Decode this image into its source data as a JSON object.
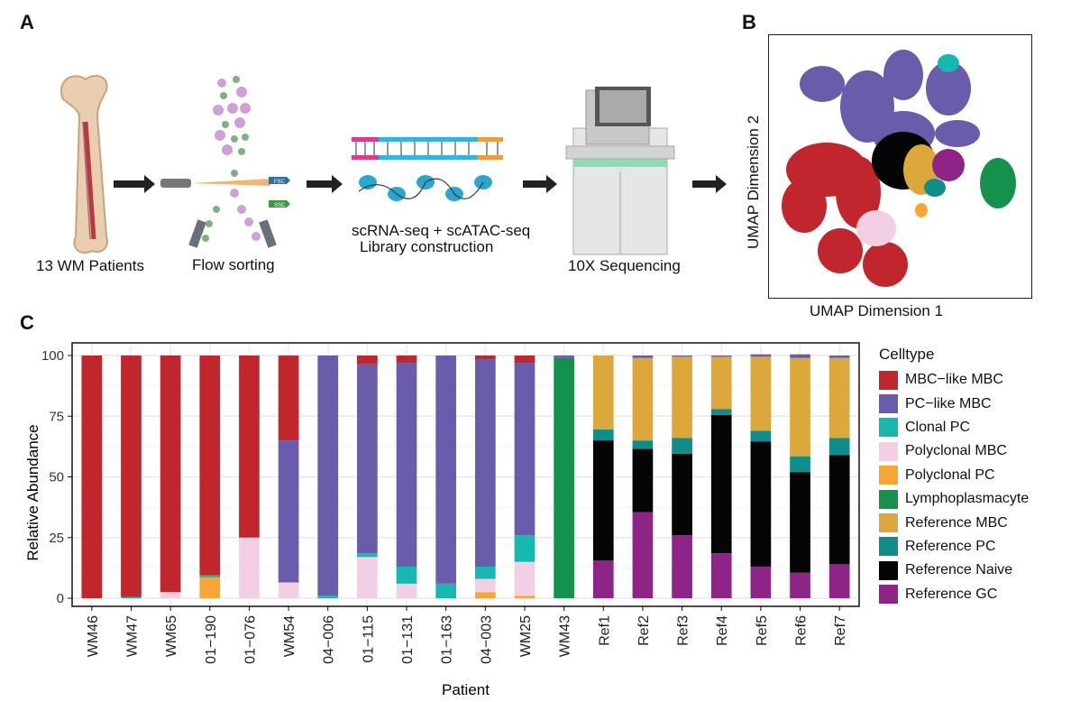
{
  "panels": {
    "a": "A",
    "b": "B",
    "c": "C"
  },
  "workflow": {
    "step1": "13 WM Patients",
    "step2": "Flow sorting",
    "step3_line1": "scRNA-seq + scATAC-seq",
    "step3_line2": "Library construction",
    "step4": "10X Sequencing",
    "fsc": "FSC",
    "ssc": "SSC"
  },
  "umap": {
    "xlabel": "UMAP Dimension 1",
    "ylabel": "UMAP Dimension 2"
  },
  "colors": {
    "MBC-like MBC": "#c0262b",
    "PC-like MBC": "#6a5cab",
    "Clonal PC": "#17b8b0",
    "Polyclonal MBC": "#f2cfe2",
    "Polyclonal PC": "#f7a535",
    "Lymphoplasmacyte": "#14914a",
    "Reference MBC": "#dca83c",
    "Reference PC": "#0f8c8c",
    "Reference Naive": "#050505",
    "Reference GC": "#8e2586"
  },
  "chart_data": {
    "type": "bar",
    "stacked": true,
    "xlabel": "Patient",
    "ylabel": "Relative Abundance",
    "ylim": [
      0,
      100
    ],
    "yticks": [
      0,
      25,
      50,
      75,
      100
    ],
    "grid": true,
    "legend_title": "Celltype",
    "legend_position": "right",
    "categories": [
      "WM46",
      "WM47",
      "WM65",
      "01−190",
      "01−076",
      "WM54",
      "04−006",
      "01−115",
      "01−131",
      "01−163",
      "04−003",
      "WM25",
      "WM43",
      "Ref1",
      "Ref2",
      "Ref3",
      "Ref4",
      "Ref5",
      "Ref6",
      "Ref7"
    ],
    "series": [
      {
        "name": "Reference GC",
        "values": [
          0,
          0,
          0,
          0,
          0,
          0,
          0,
          0,
          0,
          0,
          0,
          0,
          0,
          15.5,
          35.5,
          26,
          18.5,
          13,
          10.5,
          14
        ]
      },
      {
        "name": "Reference Naive",
        "values": [
          0,
          0,
          0,
          0,
          0,
          0,
          0,
          0,
          0,
          0,
          0,
          0,
          0,
          49.5,
          26,
          33.5,
          57,
          51.5,
          41.5,
          45
        ]
      },
      {
        "name": "Reference PC",
        "values": [
          0,
          0,
          0,
          0,
          0,
          0,
          0,
          0,
          0,
          0,
          0,
          0,
          0,
          4.5,
          3.5,
          6.5,
          2.5,
          4.5,
          6.5,
          7
        ]
      },
      {
        "name": "Reference MBC",
        "values": [
          0,
          0,
          0,
          0,
          0,
          0,
          0,
          0,
          0,
          0,
          0,
          0,
          0,
          30.5,
          34,
          33.5,
          21.5,
          30.5,
          40.5,
          33
        ]
      },
      {
        "name": "Lymphoplasmacyte",
        "values": [
          0,
          0,
          0,
          0,
          0,
          0,
          0,
          0,
          0,
          0,
          0,
          0,
          99,
          0,
          0,
          0,
          0,
          0,
          0,
          0
        ]
      },
      {
        "name": "Polyclonal PC",
        "values": [
          0,
          0,
          0,
          8.5,
          0,
          0,
          0,
          0,
          0,
          0,
          2.5,
          1,
          0,
          0,
          0,
          0,
          0,
          0,
          0,
          0
        ]
      },
      {
        "name": "Polyclonal MBC",
        "values": [
          0,
          0,
          2.5,
          0,
          25,
          6.5,
          0,
          17,
          6,
          0,
          5.5,
          14,
          0,
          0,
          0,
          0,
          0,
          0,
          0,
          0
        ]
      },
      {
        "name": "Clonal PC",
        "values": [
          0,
          0.5,
          0,
          1,
          0,
          0,
          1,
          1.5,
          7,
          6,
          5,
          11,
          0,
          0,
          0,
          0,
          0,
          0,
          0,
          0
        ]
      },
      {
        "name": "PC-like MBC",
        "values": [
          0,
          0,
          0,
          0,
          0,
          58.5,
          99,
          78,
          84,
          94,
          85.5,
          71,
          1,
          0,
          1,
          0.5,
          0.5,
          1,
          1.5,
          1
        ]
      },
      {
        "name": "MBC-like MBC",
        "values": [
          100,
          99.5,
          97.5,
          90.5,
          75,
          35,
          0,
          3.5,
          3,
          0,
          1.5,
          3,
          0,
          0,
          0,
          0,
          0,
          0,
          0,
          0
        ]
      }
    ],
    "legend_entries": [
      "MBC−like MBC",
      "PC−like MBC",
      "Clonal PC",
      "Polyclonal MBC",
      "Polyclonal PC",
      "Lymphoplasmacyte",
      "Reference MBC",
      "Reference PC",
      "Reference Naive",
      "Reference GC"
    ],
    "legend_keys": [
      "MBC-like MBC",
      "PC-like MBC",
      "Clonal PC",
      "Polyclonal MBC",
      "Polyclonal PC",
      "Lymphoplasmacyte",
      "Reference MBC",
      "Reference PC",
      "Reference Naive",
      "Reference GC"
    ]
  }
}
